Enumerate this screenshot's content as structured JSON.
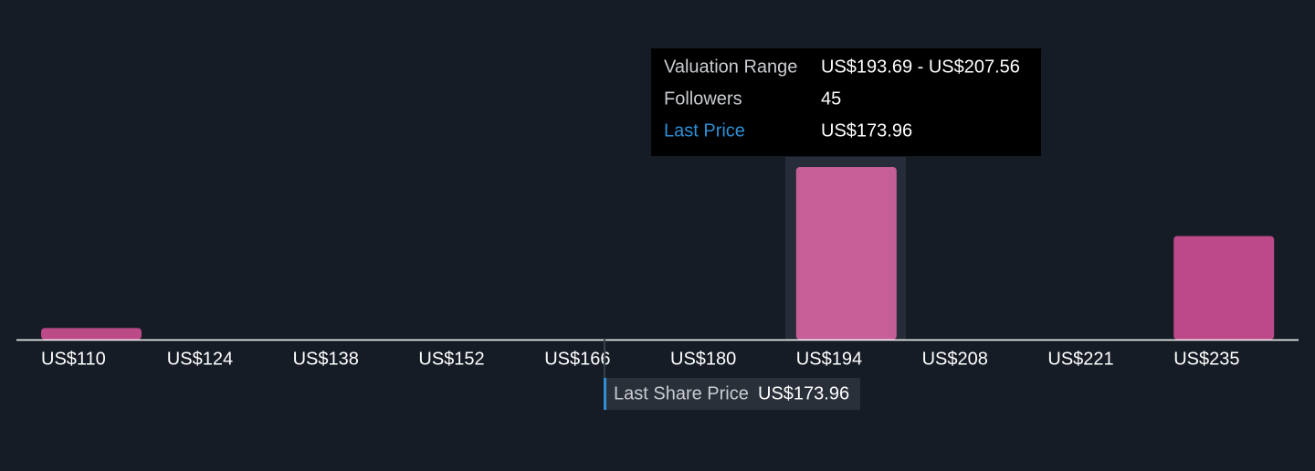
{
  "chart_data": {
    "type": "bar",
    "categories": [
      "US$110",
      "US$124",
      "US$138",
      "US$152",
      "US$166",
      "US$180",
      "US$194",
      "US$208",
      "US$221",
      "US$235"
    ],
    "values": [
      3,
      0,
      0,
      0,
      0,
      0,
      45,
      0,
      0,
      27
    ],
    "color": "#bc4a88",
    "highlight_color": "#c65f98",
    "highlight_index": 6,
    "last_price_label": "Last Share Price",
    "last_price": 173.96,
    "last_price_text": "US$173.96",
    "tooltip": {
      "rows": [
        {
          "label": "Valuation Range",
          "value": "US$193.69 - US$207.56"
        },
        {
          "label": "Followers",
          "value": 45
        },
        {
          "label": "Last Price",
          "value": "US$173.96"
        }
      ]
    }
  }
}
